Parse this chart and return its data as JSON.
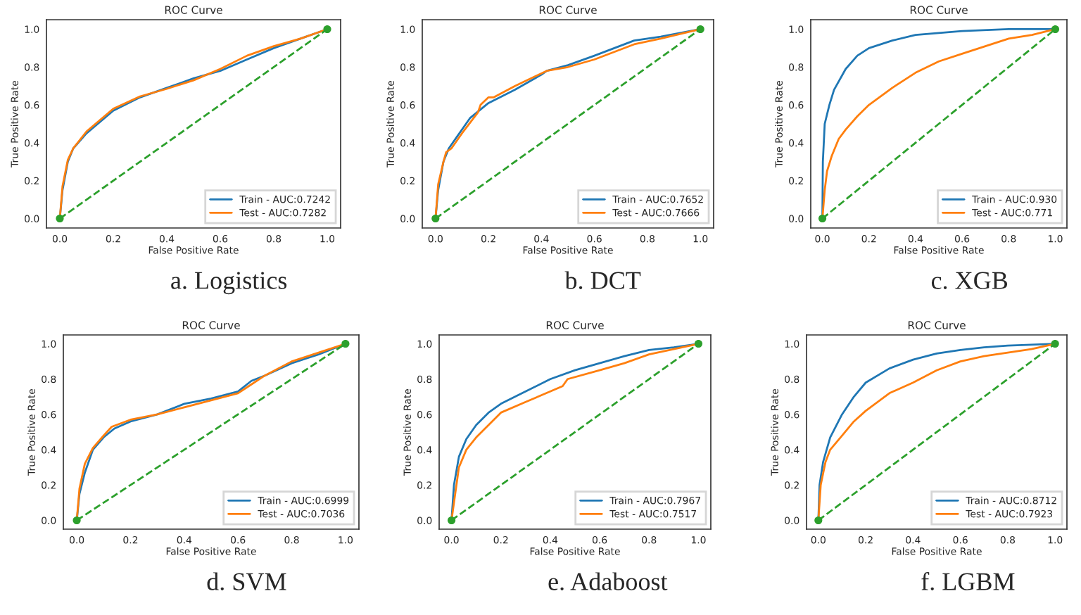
{
  "chart_data": [
    {
      "type": "line",
      "title": "ROC Curve",
      "xlabel": "False Positive Rate",
      "ylabel": "True Positive Rate",
      "annotations": [
        "a. Logistics"
      ],
      "legend": "bottom right",
      "grid": false,
      "xlim": [
        -0.05,
        1.05
      ],
      "ylim": [
        -0.05,
        1.05
      ],
      "xticks": [
        {
          "value": 0,
          "label": "0.0"
        },
        {
          "value": 0.2,
          "label": "0.2"
        },
        {
          "value": 0.4,
          "label": "0.4"
        },
        {
          "value": 0.6,
          "label": "0.6"
        },
        {
          "value": 0.8,
          "label": "0.8"
        },
        {
          "value": 1,
          "label": "1.0"
        }
      ],
      "yticks": [
        {
          "value": 0,
          "label": "0.0"
        },
        {
          "value": 0.2,
          "label": "0.2"
        },
        {
          "value": 0.4,
          "label": "0.4"
        },
        {
          "value": 0.6,
          "label": "0.6"
        },
        {
          "value": 0.8,
          "label": "0.8"
        },
        {
          "value": 1,
          "label": "1.0"
        }
      ],
      "series": [
        {
          "name": "Train - AUC:0.7242",
          "color": "#1f77b4",
          "x": [
            0,
            0.01,
            0.03,
            0.05,
            0.1,
            0.2,
            0.3,
            0.4,
            0.5,
            0.6,
            0.7,
            0.8,
            0.9,
            1
          ],
          "values": [
            0,
            0.15,
            0.3,
            0.37,
            0.45,
            0.57,
            0.64,
            0.69,
            0.74,
            0.78,
            0.84,
            0.9,
            0.95,
            1
          ]
        },
        {
          "name": "Test - AUC:0.7282",
          "color": "#ff7f0e",
          "x": [
            0,
            0.01,
            0.03,
            0.05,
            0.1,
            0.2,
            0.3,
            0.4,
            0.5,
            0.6,
            0.7,
            0.8,
            0.9,
            1
          ],
          "values": [
            0,
            0.17,
            0.31,
            0.37,
            0.46,
            0.58,
            0.645,
            0.685,
            0.73,
            0.79,
            0.86,
            0.91,
            0.95,
            1
          ]
        },
        {
          "color": "#2ca02c",
          "line_style": "dashed",
          "marker": "circle",
          "x": [
            0,
            1
          ],
          "values": [
            0,
            1
          ]
        }
      ]
    },
    {
      "type": "line",
      "title": "ROC Curve",
      "xlabel": "False Positive Rate",
      "ylabel": "True Positive Rate",
      "annotations": [
        "b. DCT"
      ],
      "legend": "bottom right",
      "grid": false,
      "xlim": [
        -0.05,
        1.05
      ],
      "ylim": [
        -0.05,
        1.05
      ],
      "xticks": [
        {
          "value": 0,
          "label": "0.0"
        },
        {
          "value": 0.2,
          "label": "0.2"
        },
        {
          "value": 0.4,
          "label": "0.4"
        },
        {
          "value": 0.6,
          "label": "0.6"
        },
        {
          "value": 0.8,
          "label": "0.8"
        },
        {
          "value": 1,
          "label": "1.0"
        }
      ],
      "yticks": [
        {
          "value": 0,
          "label": "0.0"
        },
        {
          "value": 0.2,
          "label": "0.2"
        },
        {
          "value": 0.4,
          "label": "0.4"
        },
        {
          "value": 0.6,
          "label": "0.6"
        },
        {
          "value": 0.8,
          "label": "0.8"
        },
        {
          "value": 1,
          "label": "1.0"
        }
      ],
      "series": [
        {
          "name": "Train - AUC:0.7652",
          "color": "#1f77b4",
          "x": [
            0,
            0.01,
            0.03,
            0.05,
            0.08,
            0.13,
            0.2,
            0.3,
            0.4,
            0.42,
            0.5,
            0.6,
            0.75,
            0.85,
            1
          ],
          "values": [
            0,
            0.15,
            0.3,
            0.37,
            0.43,
            0.53,
            0.61,
            0.68,
            0.76,
            0.78,
            0.81,
            0.86,
            0.94,
            0.96,
            1
          ]
        },
        {
          "name": "Test - AUC:0.7666",
          "color": "#ff7f0e",
          "x": [
            0,
            0.01,
            0.03,
            0.04,
            0.06,
            0.1,
            0.16,
            0.17,
            0.2,
            0.22,
            0.3,
            0.42,
            0.5,
            0.6,
            0.75,
            0.85,
            1
          ],
          "values": [
            0,
            0.18,
            0.3,
            0.35,
            0.37,
            0.45,
            0.56,
            0.6,
            0.64,
            0.64,
            0.7,
            0.78,
            0.8,
            0.84,
            0.92,
            0.95,
            1
          ]
        },
        {
          "color": "#2ca02c",
          "line_style": "dashed",
          "marker": "circle",
          "x": [
            0,
            1
          ],
          "values": [
            0,
            1
          ]
        }
      ]
    },
    {
      "type": "line",
      "title": "ROC Curve",
      "xlabel": "False Positive Rate",
      "ylabel": "True Positive Rate",
      "annotations": [
        "c. XGB"
      ],
      "legend": "bottom right",
      "grid": false,
      "xlim": [
        -0.05,
        1.05
      ],
      "ylim": [
        -0.05,
        1.05
      ],
      "xticks": [
        {
          "value": 0,
          "label": "0.0"
        },
        {
          "value": 0.2,
          "label": "0.2"
        },
        {
          "value": 0.4,
          "label": "0.4"
        },
        {
          "value": 0.6,
          "label": "0.6"
        },
        {
          "value": 0.8,
          "label": "0.8"
        },
        {
          "value": 1,
          "label": "1.0"
        }
      ],
      "yticks": [
        {
          "value": 0,
          "label": "0.0"
        },
        {
          "value": 0.2,
          "label": "0.2"
        },
        {
          "value": 0.4,
          "label": "0.4"
        },
        {
          "value": 0.6,
          "label": "0.6"
        },
        {
          "value": 0.8,
          "label": "0.8"
        },
        {
          "value": 1,
          "label": "1.0"
        }
      ],
      "series": [
        {
          "name": "Train - AUC:0.930",
          "color": "#1f77b4",
          "x": [
            0,
            0.002,
            0.01,
            0.03,
            0.05,
            0.1,
            0.15,
            0.2,
            0.3,
            0.4,
            0.5,
            0.6,
            0.8,
            1
          ],
          "values": [
            0,
            0.3,
            0.5,
            0.6,
            0.68,
            0.79,
            0.86,
            0.9,
            0.94,
            0.97,
            0.98,
            0.99,
            1,
            1
          ]
        },
        {
          "name": "Test - AUC:0.771",
          "color": "#ff7f0e",
          "x": [
            0,
            0.01,
            0.02,
            0.04,
            0.07,
            0.1,
            0.15,
            0.2,
            0.3,
            0.4,
            0.5,
            0.6,
            0.7,
            0.8,
            0.9,
            1
          ],
          "values": [
            0,
            0.15,
            0.25,
            0.33,
            0.42,
            0.47,
            0.54,
            0.6,
            0.69,
            0.77,
            0.83,
            0.87,
            0.91,
            0.95,
            0.97,
            1
          ]
        },
        {
          "color": "#2ca02c",
          "line_style": "dashed",
          "marker": "circle",
          "x": [
            0,
            1
          ],
          "values": [
            0,
            1
          ]
        }
      ]
    },
    {
      "type": "line",
      "title": "ROC Curve",
      "xlabel": "False Positive Rate",
      "ylabel": "True Positive Rate",
      "annotations": [
        "d. SVM"
      ],
      "legend": "bottom right",
      "grid": false,
      "xlim": [
        -0.05,
        1.05
      ],
      "ylim": [
        -0.05,
        1.05
      ],
      "xticks": [
        {
          "value": 0,
          "label": "0.0"
        },
        {
          "value": 0.2,
          "label": "0.2"
        },
        {
          "value": 0.4,
          "label": "0.4"
        },
        {
          "value": 0.6,
          "label": "0.6"
        },
        {
          "value": 0.8,
          "label": "0.8"
        },
        {
          "value": 1,
          "label": "1.0"
        }
      ],
      "yticks": [
        {
          "value": 0,
          "label": "0.0"
        },
        {
          "value": 0.2,
          "label": "0.2"
        },
        {
          "value": 0.4,
          "label": "0.4"
        },
        {
          "value": 0.6,
          "label": "0.6"
        },
        {
          "value": 0.8,
          "label": "0.8"
        },
        {
          "value": 1,
          "label": "1.0"
        }
      ],
      "series": [
        {
          "name": "Train - AUC:0.6999",
          "color": "#1f77b4",
          "x": [
            0,
            0.01,
            0.03,
            0.06,
            0.1,
            0.14,
            0.2,
            0.3,
            0.4,
            0.5,
            0.6,
            0.65,
            0.7,
            0.8,
            0.9,
            1
          ],
          "values": [
            0,
            0.15,
            0.27,
            0.4,
            0.47,
            0.52,
            0.56,
            0.6,
            0.66,
            0.69,
            0.73,
            0.79,
            0.82,
            0.89,
            0.94,
            1
          ]
        },
        {
          "name": "Test - AUC:0.7036",
          "color": "#ff7f0e",
          "x": [
            0,
            0.01,
            0.03,
            0.06,
            0.1,
            0.13,
            0.2,
            0.3,
            0.4,
            0.5,
            0.6,
            0.65,
            0.7,
            0.8,
            0.9,
            1
          ],
          "values": [
            0,
            0.18,
            0.32,
            0.41,
            0.48,
            0.53,
            0.57,
            0.6,
            0.64,
            0.68,
            0.72,
            0.77,
            0.82,
            0.9,
            0.95,
            1
          ]
        },
        {
          "color": "#2ca02c",
          "line_style": "dashed",
          "marker": "circle",
          "x": [
            0,
            1
          ],
          "values": [
            0,
            1
          ]
        }
      ]
    },
    {
      "type": "line",
      "title": "ROC Curve",
      "xlabel": "False Positive Rate",
      "ylabel": "True Positive Rate",
      "annotations": [
        "e. Adaboost"
      ],
      "legend": "bottom right",
      "grid": false,
      "xlim": [
        -0.05,
        1.05
      ],
      "ylim": [
        -0.05,
        1.05
      ],
      "xticks": [
        {
          "value": 0,
          "label": "0.0"
        },
        {
          "value": 0.2,
          "label": "0.2"
        },
        {
          "value": 0.4,
          "label": "0.4"
        },
        {
          "value": 0.6,
          "label": "0.6"
        },
        {
          "value": 0.8,
          "label": "0.8"
        },
        {
          "value": 1,
          "label": "1.0"
        }
      ],
      "yticks": [
        {
          "value": 0,
          "label": "0.0"
        },
        {
          "value": 0.2,
          "label": "0.2"
        },
        {
          "value": 0.4,
          "label": "0.4"
        },
        {
          "value": 0.6,
          "label": "0.6"
        },
        {
          "value": 0.8,
          "label": "0.8"
        },
        {
          "value": 1,
          "label": "1.0"
        }
      ],
      "series": [
        {
          "name": "Train - AUC:0.7967",
          "color": "#1f77b4",
          "x": [
            0,
            0.01,
            0.03,
            0.06,
            0.1,
            0.15,
            0.2,
            0.3,
            0.4,
            0.5,
            0.6,
            0.7,
            0.8,
            0.9,
            1
          ],
          "values": [
            0,
            0.2,
            0.36,
            0.46,
            0.54,
            0.61,
            0.66,
            0.73,
            0.8,
            0.85,
            0.89,
            0.93,
            0.965,
            0.98,
            1
          ]
        },
        {
          "name": "Test - AUC:0.7517",
          "color": "#ff7f0e",
          "x": [
            0,
            0.01,
            0.03,
            0.06,
            0.1,
            0.15,
            0.2,
            0.3,
            0.4,
            0.45,
            0.47,
            0.6,
            0.7,
            0.8,
            0.9,
            1
          ],
          "values": [
            0,
            0.1,
            0.3,
            0.4,
            0.47,
            0.54,
            0.61,
            0.67,
            0.73,
            0.76,
            0.8,
            0.85,
            0.89,
            0.94,
            0.97,
            1
          ]
        },
        {
          "color": "#2ca02c",
          "line_style": "dashed",
          "marker": "circle",
          "x": [
            0,
            1
          ],
          "values": [
            0,
            1
          ]
        }
      ]
    },
    {
      "type": "line",
      "title": "ROC Curve",
      "xlabel": "False Positive Rate",
      "ylabel": "True Positive Rate",
      "annotations": [
        "f. LGBM"
      ],
      "legend": "bottom right",
      "grid": false,
      "xlim": [
        -0.05,
        1.05
      ],
      "ylim": [
        -0.05,
        1.05
      ],
      "xticks": [
        {
          "value": 0,
          "label": "0.0"
        },
        {
          "value": 0.2,
          "label": "0.2"
        },
        {
          "value": 0.4,
          "label": "0.4"
        },
        {
          "value": 0.6,
          "label": "0.6"
        },
        {
          "value": 0.8,
          "label": "0.8"
        },
        {
          "value": 1,
          "label": "1.0"
        }
      ],
      "yticks": [
        {
          "value": 0,
          "label": "0.0"
        },
        {
          "value": 0.2,
          "label": "0.2"
        },
        {
          "value": 0.4,
          "label": "0.4"
        },
        {
          "value": 0.6,
          "label": "0.6"
        },
        {
          "value": 0.8,
          "label": "0.8"
        },
        {
          "value": 1,
          "label": "1.0"
        }
      ],
      "series": [
        {
          "name": "Train - AUC:0.8712",
          "color": "#1f77b4",
          "x": [
            0,
            0.005,
            0.02,
            0.05,
            0.1,
            0.15,
            0.2,
            0.3,
            0.4,
            0.5,
            0.6,
            0.7,
            0.8,
            1
          ],
          "values": [
            0,
            0.2,
            0.33,
            0.47,
            0.6,
            0.7,
            0.78,
            0.86,
            0.91,
            0.945,
            0.965,
            0.98,
            0.99,
            1
          ]
        },
        {
          "name": "Test - AUC:0.7923",
          "color": "#ff7f0e",
          "x": [
            0,
            0.01,
            0.03,
            0.05,
            0.1,
            0.15,
            0.2,
            0.3,
            0.4,
            0.5,
            0.6,
            0.7,
            0.8,
            0.9,
            1
          ],
          "values": [
            0,
            0.2,
            0.33,
            0.4,
            0.48,
            0.56,
            0.62,
            0.72,
            0.78,
            0.85,
            0.9,
            0.93,
            0.95,
            0.97,
            1
          ]
        },
        {
          "color": "#2ca02c",
          "line_style": "dashed",
          "marker": "circle",
          "x": [
            0,
            1
          ],
          "values": [
            0,
            1
          ]
        }
      ]
    }
  ]
}
